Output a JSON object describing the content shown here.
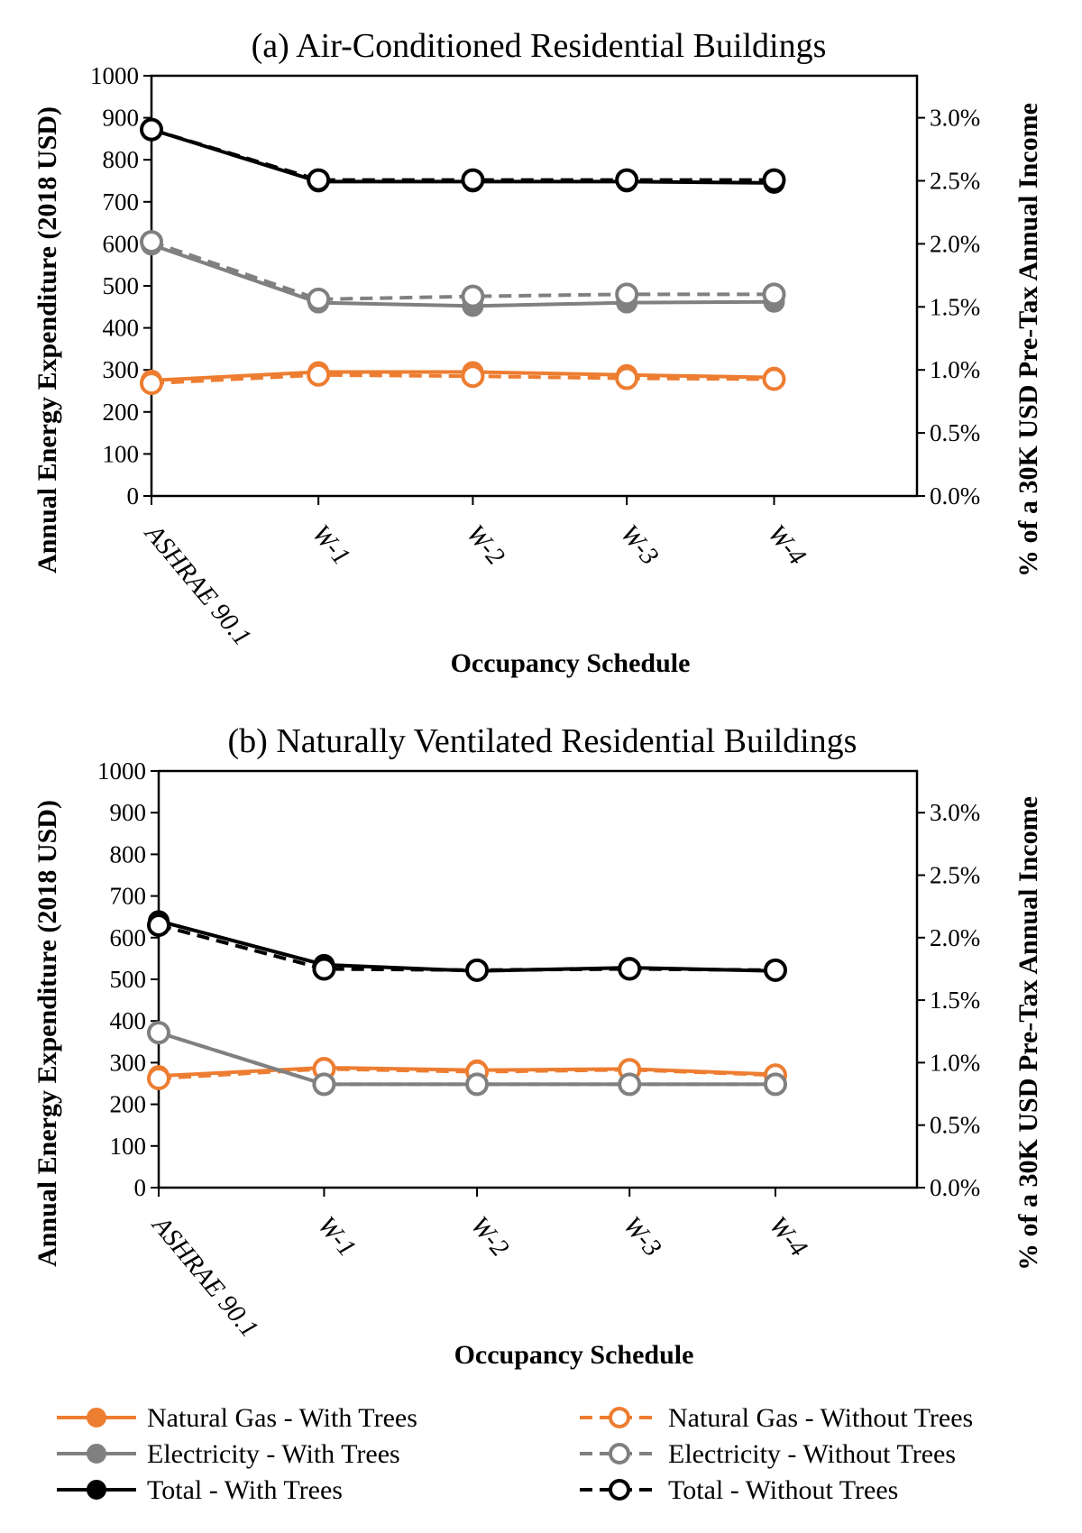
{
  "colors": {
    "natural_gas": "#ED7D31",
    "electricity": "#808080",
    "total": "#000000"
  },
  "chart_data": [
    {
      "type": "line",
      "title": "(a) Air-Conditioned  Residential  Buildings",
      "xlabel": "Occupancy  Schedule",
      "ylabel": "Annual  Energy  Expenditure   (2018 USD)",
      "y2label": "% of a 30K USD  Pre-Tax  Annual  Income",
      "ylim": [
        0,
        1000
      ],
      "yticks": [
        "0",
        "100",
        "200",
        "300",
        "400",
        "500",
        "600",
        "700",
        "800",
        "900",
        "1000"
      ],
      "y2ticks": [
        "0.0%",
        "0.5%",
        "1.0%",
        "1.5%",
        "2.0%",
        "2.5%",
        "3.0%"
      ],
      "categories": [
        "ASHRAE 90.1",
        "W-1",
        "W-2",
        "W-3",
        "W-4"
      ],
      "series": [
        {
          "name": "Natural Gas - With Trees",
          "color_key": "natural_gas",
          "style": "solid",
          "marker": "filled",
          "values": [
            275,
            295,
            295,
            288,
            282
          ]
        },
        {
          "name": "Natural Gas - Without Trees",
          "color_key": "natural_gas",
          "style": "dashed",
          "marker": "open",
          "values": [
            268,
            288,
            285,
            280,
            278
          ]
        },
        {
          "name": "Electricity - With Trees",
          "color_key": "electricity",
          "style": "solid",
          "marker": "filled",
          "values": [
            598,
            460,
            452,
            460,
            462
          ]
        },
        {
          "name": "Electricity - Without Trees",
          "color_key": "electricity",
          "style": "dashed",
          "marker": "open",
          "values": [
            605,
            468,
            475,
            480,
            480
          ]
        },
        {
          "name": "Total - With Trees",
          "color_key": "total",
          "style": "solid",
          "marker": "filled",
          "values": [
            872,
            748,
            748,
            748,
            745
          ]
        },
        {
          "name": "Total - Without Trees",
          "color_key": "total",
          "style": "dashed",
          "marker": "open",
          "values": [
            872,
            752,
            752,
            752,
            752
          ]
        }
      ]
    },
    {
      "type": "line",
      "title": "(b) Naturally  Ventilated  Residential  Buildings",
      "xlabel": "Occupancy  Schedule",
      "ylabel": "Annual  Energy  Expenditure   (2018 USD)",
      "y2label": "% of a 30K USD  Pre-Tax  Annual  Income",
      "ylim": [
        0,
        1000
      ],
      "yticks": [
        "0",
        "100",
        "200",
        "300",
        "400",
        "500",
        "600",
        "700",
        "800",
        "900",
        "1000"
      ],
      "y2ticks": [
        "0.0%",
        "0.5%",
        "1.0%",
        "1.5%",
        "2.0%",
        "2.5%",
        "3.0%"
      ],
      "categories": [
        "ASHRAE 90.1",
        "W-1",
        "W-2",
        "W-3",
        "W-4"
      ],
      "series": [
        {
          "name": "Natural Gas - With Trees",
          "color_key": "natural_gas",
          "style": "solid",
          "marker": "filled",
          "values": [
            268,
            288,
            282,
            285,
            272
          ]
        },
        {
          "name": "Natural Gas - Without Trees",
          "color_key": "natural_gas",
          "style": "dashed",
          "marker": "open",
          "values": [
            262,
            285,
            278,
            283,
            270
          ]
        },
        {
          "name": "Electricity - With Trees",
          "color_key": "electricity",
          "style": "solid",
          "marker": "filled",
          "values": [
            372,
            248,
            248,
            248,
            248
          ]
        },
        {
          "name": "Electricity - Without Trees",
          "color_key": "electricity",
          "style": "dashed",
          "marker": "open",
          "values": [
            372,
            248,
            248,
            248,
            248
          ]
        },
        {
          "name": "Total - With Trees",
          "color_key": "total",
          "style": "solid",
          "marker": "filled",
          "values": [
            640,
            535,
            520,
            528,
            520
          ]
        },
        {
          "name": "Total - Without Trees",
          "color_key": "total",
          "style": "dashed",
          "marker": "open",
          "values": [
            630,
            525,
            522,
            525,
            522
          ]
        }
      ]
    }
  ],
  "legend": {
    "items": [
      {
        "label": "Natural Gas - With Trees",
        "color_key": "natural_gas",
        "style": "solid",
        "marker": "filled"
      },
      {
        "label": "Natural Gas - Without Trees",
        "color_key": "natural_gas",
        "style": "dashed",
        "marker": "open"
      },
      {
        "label": "Electricity - With Trees",
        "color_key": "electricity",
        "style": "solid",
        "marker": "filled"
      },
      {
        "label": "Electricity - Without Trees",
        "color_key": "electricity",
        "style": "dashed",
        "marker": "open"
      },
      {
        "label": "Total - With Trees",
        "color_key": "total",
        "style": "solid",
        "marker": "filled"
      },
      {
        "label": "Total - Without Trees",
        "color_key": "total",
        "style": "dashed",
        "marker": "open"
      }
    ]
  }
}
